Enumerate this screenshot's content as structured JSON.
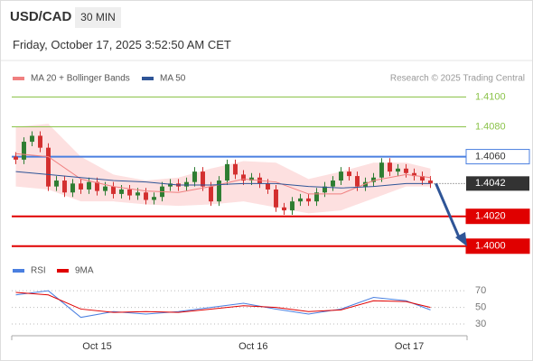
{
  "header": {
    "symbol": "USD/CAD",
    "interval": "30 MIN",
    "datetime": "Friday, October 17, 2025 3:52:50 AM CET"
  },
  "chart_data": [
    {
      "type": "candlestick",
      "source": "Research © 2025 Trading Central",
      "xlim": [
        -0.5,
        55.5
      ],
      "xticks": [
        {
          "value": 10,
          "label": "Oct 15"
        },
        {
          "value": 29.2,
          "label": "Oct 16"
        },
        {
          "value": 48.4,
          "label": "Oct 17"
        }
      ],
      "ylim": [
        1.3992,
        1.4116
      ],
      "up_color": "#2e7d32",
      "down_color": "#d32f2f",
      "open": [
        1.406,
        1.4058,
        1.407,
        1.4074,
        1.4066,
        1.404,
        1.4044,
        1.4036,
        1.4042,
        1.4038,
        1.4043,
        1.4037,
        1.404,
        1.4035,
        1.4038,
        1.4034,
        1.4036,
        1.4031,
        1.4033,
        1.404,
        1.4042,
        1.404,
        1.4043,
        1.405,
        1.404,
        1.403,
        1.4044,
        1.4055,
        1.4048,
        1.4044,
        1.4046,
        1.4042,
        1.4038,
        1.4026,
        1.4024,
        1.403,
        1.4032,
        1.403,
        1.4036,
        1.404,
        1.4044,
        1.405,
        1.4047,
        1.404,
        1.4043,
        1.4046,
        1.4056,
        1.405,
        1.4052,
        1.4049,
        1.4047,
        1.4044
      ],
      "high": [
        1.4063,
        1.4073,
        1.4077,
        1.4077,
        1.4069,
        1.4047,
        1.4047,
        1.4045,
        1.4045,
        1.4046,
        1.4046,
        1.4043,
        1.4043,
        1.4041,
        1.4041,
        1.4039,
        1.4039,
        1.4036,
        1.4043,
        1.4045,
        1.4045,
        1.4046,
        1.4053,
        1.4053,
        1.4043,
        1.4047,
        1.4058,
        1.4058,
        1.4051,
        1.4049,
        1.4049,
        1.4045,
        1.4041,
        1.4029,
        1.4033,
        1.4035,
        1.4035,
        1.4039,
        1.4043,
        1.4047,
        1.4053,
        1.4053,
        1.405,
        1.4046,
        1.4049,
        1.4059,
        1.4059,
        1.4055,
        1.4055,
        1.4052,
        1.405,
        1.4047
      ],
      "low": [
        1.4055,
        1.4055,
        1.4067,
        1.4063,
        1.4037,
        1.4037,
        1.4033,
        1.4033,
        1.4035,
        1.4035,
        1.4034,
        1.4034,
        1.4032,
        1.4032,
        1.4031,
        1.4031,
        1.4028,
        1.4028,
        1.403,
        1.4037,
        1.4037,
        1.4037,
        1.404,
        1.4037,
        1.4027,
        1.4027,
        1.4041,
        1.4045,
        1.4041,
        1.4041,
        1.4039,
        1.4035,
        1.4023,
        1.4021,
        1.4021,
        1.4027,
        1.4027,
        1.4027,
        1.4033,
        1.4037,
        1.4041,
        1.4044,
        1.4037,
        1.4037,
        1.404,
        1.4043,
        1.4047,
        1.4047,
        1.4046,
        1.4044,
        1.4041,
        1.4039
      ],
      "close": [
        1.4058,
        1.407,
        1.4074,
        1.4066,
        1.404,
        1.4044,
        1.4036,
        1.4042,
        1.4038,
        1.4043,
        1.4037,
        1.404,
        1.4035,
        1.4038,
        1.4034,
        1.4036,
        1.4031,
        1.4033,
        1.404,
        1.4042,
        1.404,
        1.4043,
        1.405,
        1.404,
        1.403,
        1.4044,
        1.4055,
        1.4048,
        1.4044,
        1.4046,
        1.4042,
        1.4038,
        1.4026,
        1.4024,
        1.403,
        1.4032,
        1.403,
        1.4036,
        1.404,
        1.4044,
        1.405,
        1.4047,
        1.404,
        1.4043,
        1.4046,
        1.4056,
        1.405,
        1.4052,
        1.4049,
        1.4047,
        1.4044,
        1.4042
      ],
      "overlays": [
        {
          "name": "MA 20 + Bollinger Bands",
          "color": "#f08080",
          "band_color": "#fde0e0",
          "x": [
            0,
            4,
            8,
            12,
            16,
            20,
            24,
            28,
            32,
            36,
            40,
            44,
            48,
            51
          ],
          "values": [
            1.4062,
            1.406,
            1.4045,
            1.404,
            1.4037,
            1.4036,
            1.404,
            1.4045,
            1.4043,
            1.4035,
            1.4035,
            1.4044,
            1.4048,
            1.4046
          ],
          "upper": [
            1.408,
            1.4082,
            1.406,
            1.4048,
            1.4044,
            1.4046,
            1.4052,
            1.4057,
            1.4056,
            1.4045,
            1.405,
            1.4056,
            1.4056,
            1.4052
          ],
          "lower": [
            1.404,
            1.4038,
            1.403,
            1.403,
            1.4028,
            1.4027,
            1.4028,
            1.403,
            1.4026,
            1.4022,
            1.4024,
            1.4032,
            1.404,
            1.404
          ]
        },
        {
          "name": "MA 50",
          "color": "#2f5597",
          "x": [
            0,
            4,
            8,
            12,
            16,
            20,
            24,
            28,
            32,
            36,
            40,
            44,
            48,
            51
          ],
          "values": [
            1.405,
            1.4048,
            1.4046,
            1.4044,
            1.4043,
            1.4041,
            1.4041,
            1.4042,
            1.4042,
            1.404,
            1.4039,
            1.404,
            1.4042,
            1.4042
          ]
        }
      ],
      "levels": [
        {
          "value": 1.41,
          "label": "1.4100",
          "color": "#8bc34a",
          "boxed": false
        },
        {
          "value": 1.408,
          "label": "1.4080",
          "color": "#8bc34a",
          "boxed": false
        },
        {
          "value": 1.406,
          "label": "1.4060",
          "color": "#4a7fe0",
          "boxed": true
        },
        {
          "value": 1.402,
          "label": "1.4020",
          "color": "#e00000",
          "boxed": true
        },
        {
          "value": 1.4,
          "label": "1.4000",
          "color": "#e00000",
          "boxed": true
        }
      ],
      "last": {
        "value": 1.4042,
        "label": "1.4042",
        "color": "#333333"
      }
    },
    {
      "type": "line",
      "ylim": [
        17,
        93
      ],
      "yticks": [
        30,
        50,
        70
      ],
      "series": [
        {
          "name": "RSI",
          "color": "#4a7fe0",
          "x": [
            0,
            4,
            8,
            12,
            16,
            20,
            24,
            28,
            32,
            36,
            40,
            44,
            48,
            51
          ],
          "values": [
            65,
            70,
            38,
            45,
            42,
            45,
            50,
            55,
            48,
            42,
            48,
            62,
            58,
            47
          ]
        },
        {
          "name": "9MA",
          "color": "#e00000",
          "x": [
            0,
            4,
            8,
            12,
            16,
            20,
            24,
            28,
            32,
            36,
            40,
            44,
            48,
            51
          ],
          "values": [
            68,
            65,
            48,
            44,
            45,
            44,
            48,
            52,
            50,
            45,
            47,
            58,
            57,
            50
          ]
        }
      ]
    }
  ]
}
